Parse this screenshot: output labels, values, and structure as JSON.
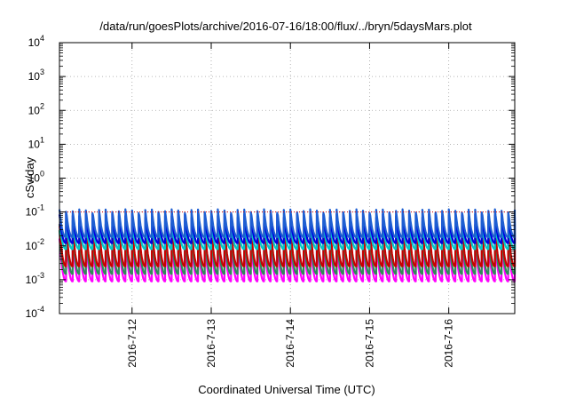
{
  "chart_data": {
    "type": "line",
    "title": "/data/run/goesPlots/archive/2016-07-16/18:00/flux/../bryn/5daysMars.plot",
    "xlabel": "Coordinated Universal Time (UTC)",
    "ylabel": "cSv/day",
    "yscale": "log",
    "ylim": [
      0.0001,
      10000
    ],
    "yticks": [
      {
        "base": "10",
        "exp": "-4"
      },
      {
        "base": "10",
        "exp": "-3"
      },
      {
        "base": "10",
        "exp": "-2"
      },
      {
        "base": "10",
        "exp": "-1"
      },
      {
        "base": "10",
        "exp": "0"
      },
      {
        "base": "10",
        "exp": "1"
      },
      {
        "base": "10",
        "exp": "2"
      },
      {
        "base": "10",
        "exp": "3"
      },
      {
        "base": "10",
        "exp": "4"
      }
    ],
    "xlim": [
      "2016-07-11 02:00",
      "2016-07-16 20:00"
    ],
    "xticks": [
      "2016-7-12",
      "2016-7-13",
      "2016-7-14",
      "2016-7-15",
      "2016-7-16"
    ],
    "grid": true,
    "reference_line": {
      "value": 0.1,
      "color": "#e00000",
      "style": "dotted"
    },
    "sawtooth": {
      "period_hours": 2,
      "profile": [
        1.0,
        0.82,
        0.66,
        0.52,
        0.41,
        0.33,
        0.27,
        0.22,
        0.19,
        0.17
      ]
    },
    "series": [
      {
        "color": "#ff00ff",
        "peak": 0.022,
        "trough": 0.0009
      },
      {
        "color": "#2e8b57",
        "peak": 0.03,
        "trough": 0.0015
      },
      {
        "color": "#c80000",
        "peak": 0.045,
        "trough": 0.0025
      },
      {
        "color": "#00c8c8",
        "peak": 0.055,
        "trough": 0.008
      },
      {
        "color": "#0000e0",
        "peak": 0.09,
        "trough": 0.012
      },
      {
        "color": "#1e5fd2",
        "peak": 0.12,
        "trough": 0.018
      }
    ]
  }
}
